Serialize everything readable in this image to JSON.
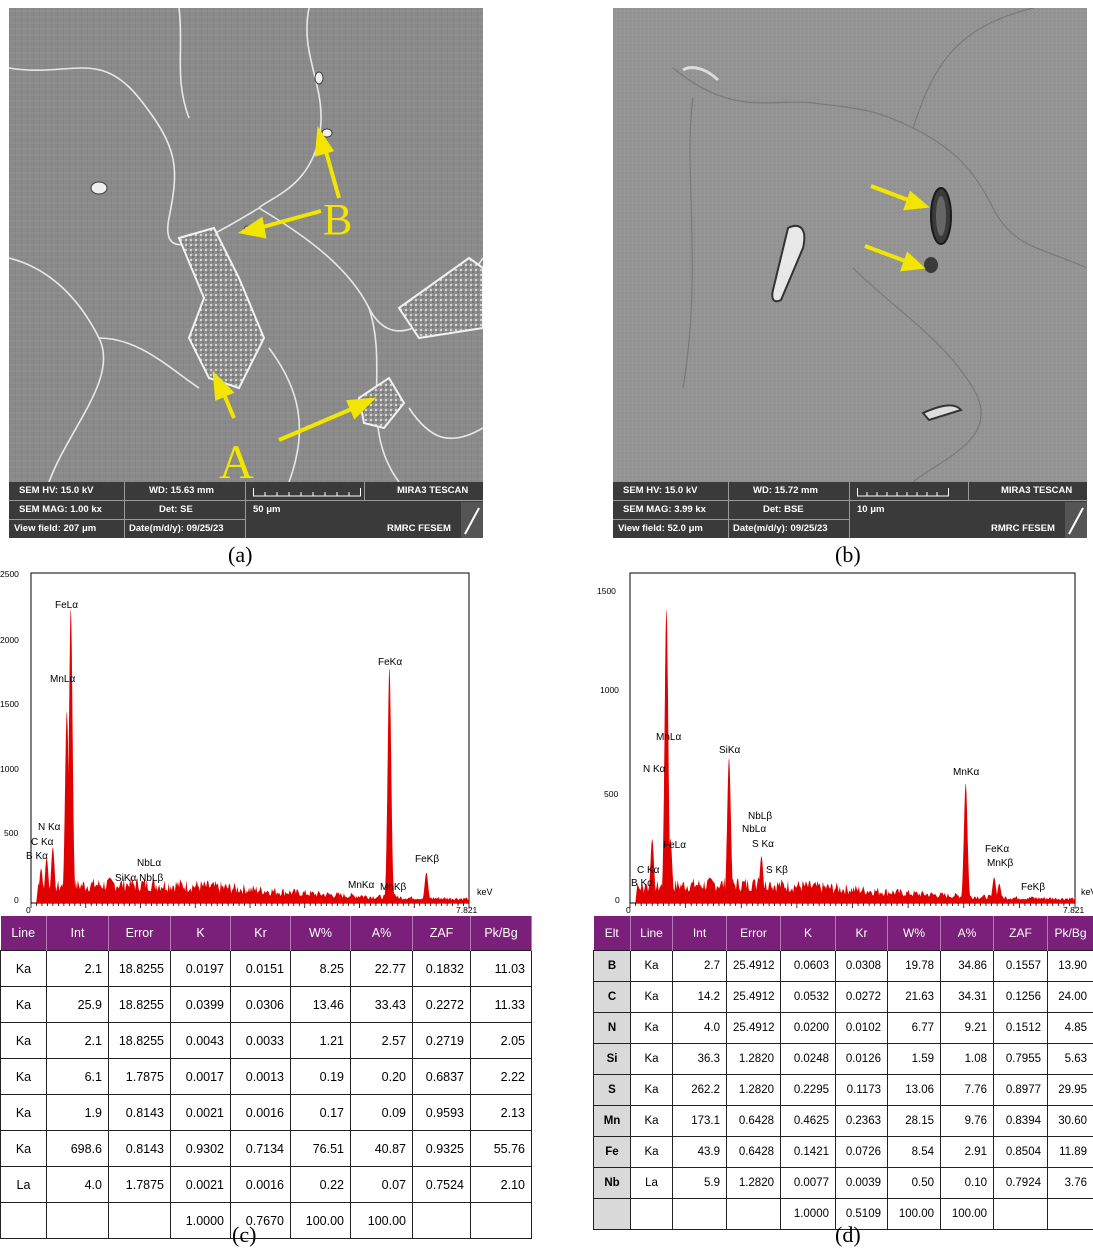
{
  "panel_a": {
    "markers": [
      "B",
      "A"
    ],
    "info": {
      "hv": "SEM HV: 15.0 kV",
      "wd": "WD: 15.63 mm",
      "brand": "MIRA3 TESCAN",
      "mag": "SEM MAG: 1.00 kx",
      "det": "Det: SE",
      "scale": "50 μm",
      "field": "View field: 207 μm",
      "date": "Date(m/d/y): 09/25/23",
      "lab": "RMRC  FESEM"
    },
    "caption": "(a)"
  },
  "panel_b": {
    "info": {
      "hv": "SEM HV: 15.0 kV",
      "wd": "WD: 15.72 mm",
      "brand": "MIRA3 TESCAN",
      "mag": "SEM MAG: 3.99 kx",
      "det": "Det: BSE",
      "scale": "10 μm",
      "field": "View field: 52.0 μm",
      "date": "Date(m/d/y): 09/25/23",
      "lab": "RMRC  FESEM"
    },
    "caption": "(b)"
  },
  "spectrum_c_labels": {
    "x_unit": "keV",
    "x_end": "7.821",
    "x_start": "0",
    "y_ticks": [
      "2500",
      "2000",
      "1500",
      "1000",
      "500",
      "0"
    ],
    "peaks": [
      "FeLα",
      "MnLα",
      "N Kα",
      "C Kα",
      "B Kα",
      "NbLα",
      "SiKα NbLβ",
      "FeKα",
      "FeKβ",
      "MnKα",
      "MnKβ"
    ]
  },
  "spectrum_d_labels": {
    "x_unit": "keV",
    "x_end": "7.821",
    "x_start": "0",
    "y_ticks": [
      "1500",
      "1000",
      "500",
      "0"
    ],
    "peaks": [
      "MnLα",
      "N Kα",
      "SiKα",
      "FeLα",
      "C Kα",
      "B Kα",
      "NbLβ",
      "NbLα",
      "S Kα",
      "S Kβ",
      "MnKα",
      "FeKα",
      "MnKβ",
      "FeKβ"
    ]
  },
  "chart_data": [
    {
      "type": "line",
      "x_unit": "keV",
      "xlim": [
        0,
        7.821
      ],
      "ylim": [
        0,
        2500
      ],
      "peaks": [
        {
          "label": "B Kα",
          "x": 0.18,
          "y": 260
        },
        {
          "label": "C Kα",
          "x": 0.28,
          "y": 340
        },
        {
          "label": "N Kα",
          "x": 0.39,
          "y": 420
        },
        {
          "label": "MnLα",
          "x": 0.64,
          "y": 1450
        },
        {
          "label": "FeLα",
          "x": 0.71,
          "y": 2230
        },
        {
          "label": "SiKα NbLβ",
          "x": 1.74,
          "y": 130
        },
        {
          "label": "NbLα",
          "x": 2.17,
          "y": 120
        },
        {
          "label": "MnKα",
          "x": 5.9,
          "y": 60
        },
        {
          "label": "FeKα",
          "x": 6.4,
          "y": 1780
        },
        {
          "label": "MnKβ",
          "x": 6.49,
          "y": 70
        },
        {
          "label": "FeKβ",
          "x": 7.06,
          "y": 230
        }
      ]
    },
    {
      "type": "line",
      "x_unit": "keV",
      "xlim": [
        0,
        7.821
      ],
      "ylim": [
        0,
        1550
      ],
      "peaks": [
        {
          "label": "B Kα",
          "x": 0.18,
          "y": 60
        },
        {
          "label": "C Kα",
          "x": 0.28,
          "y": 90
        },
        {
          "label": "N Kα",
          "x": 0.39,
          "y": 300
        },
        {
          "label": "MnLα",
          "x": 0.64,
          "y": 1380
        },
        {
          "label": "FeLα",
          "x": 0.71,
          "y": 300
        },
        {
          "label": "SiKα",
          "x": 1.74,
          "y": 680
        },
        {
          "label": "NbLβ",
          "x": 2.26,
          "y": 120
        },
        {
          "label": "NbLα",
          "x": 2.17,
          "y": 110
        },
        {
          "label": "S Kα",
          "x": 2.31,
          "y": 220
        },
        {
          "label": "S Kβ",
          "x": 2.46,
          "y": 100
        },
        {
          "label": "MnKα",
          "x": 5.9,
          "y": 560
        },
        {
          "label": "FeKα",
          "x": 6.4,
          "y": 120
        },
        {
          "label": "MnKβ",
          "x": 6.49,
          "y": 90
        },
        {
          "label": "FeKβ",
          "x": 7.06,
          "y": 30
        }
      ]
    },
    {
      "type": "table",
      "columns": [
        "Line",
        "Int",
        "Error",
        "K",
        "Kr",
        "W%",
        "A%",
        "ZAF",
        "Pk/Bg"
      ],
      "rows": [
        [
          "Ka",
          "2.1",
          "18.8255",
          "0.0197",
          "0.0151",
          "8.25",
          "22.77",
          "0.1832",
          "11.03"
        ],
        [
          "Ka",
          "25.9",
          "18.8255",
          "0.0399",
          "0.0306",
          "13.46",
          "33.43",
          "0.2272",
          "11.33"
        ],
        [
          "Ka",
          "2.1",
          "18.8255",
          "0.0043",
          "0.0033",
          "1.21",
          "2.57",
          "0.2719",
          "2.05"
        ],
        [
          "Ka",
          "6.1",
          "1.7875",
          "0.0017",
          "0.0013",
          "0.19",
          "0.20",
          "0.6837",
          "2.22"
        ],
        [
          "Ka",
          "1.9",
          "0.8143",
          "0.0021",
          "0.0016",
          "0.17",
          "0.09",
          "0.9593",
          "2.13"
        ],
        [
          "Ka",
          "698.6",
          "0.8143",
          "0.9302",
          "0.7134",
          "76.51",
          "40.87",
          "0.9325",
          "55.76"
        ],
        [
          "La",
          "4.0",
          "1.7875",
          "0.0021",
          "0.0016",
          "0.22",
          "0.07",
          "0.7524",
          "2.10"
        ],
        [
          "",
          "",
          "",
          "1.0000",
          "0.7670",
          "100.00",
          "100.00",
          "",
          ""
        ]
      ]
    },
    {
      "type": "table",
      "columns": [
        "Elt",
        "Line",
        "Int",
        "Error",
        "K",
        "Kr",
        "W%",
        "A%",
        "ZAF",
        "Pk/Bg"
      ],
      "rows": [
        [
          "B",
          "Ka",
          "2.7",
          "25.4912",
          "0.0603",
          "0.0308",
          "19.78",
          "34.86",
          "0.1557",
          "13.90"
        ],
        [
          "C",
          "Ka",
          "14.2",
          "25.4912",
          "0.0532",
          "0.0272",
          "21.63",
          "34.31",
          "0.1256",
          "24.00"
        ],
        [
          "N",
          "Ka",
          "4.0",
          "25.4912",
          "0.0200",
          "0.0102",
          "6.77",
          "9.21",
          "0.1512",
          "4.85"
        ],
        [
          "Si",
          "Ka",
          "36.3",
          "1.2820",
          "0.0248",
          "0.0126",
          "1.59",
          "1.08",
          "0.7955",
          "5.63"
        ],
        [
          "S",
          "Ka",
          "262.2",
          "1.2820",
          "0.2295",
          "0.1173",
          "13.06",
          "7.76",
          "0.8977",
          "29.95"
        ],
        [
          "Mn",
          "Ka",
          "173.1",
          "0.6428",
          "0.4625",
          "0.2363",
          "28.15",
          "9.76",
          "0.8394",
          "30.60"
        ],
        [
          "Fe",
          "Ka",
          "43.9",
          "0.6428",
          "0.1421",
          "0.0726",
          "8.54",
          "2.91",
          "0.8504",
          "11.89"
        ],
        [
          "Nb",
          "La",
          "5.9",
          "1.2820",
          "0.0077",
          "0.0039",
          "0.50",
          "0.10",
          "0.7924",
          "3.76"
        ],
        [
          "",
          "",
          "",
          "",
          "1.0000",
          "0.5109",
          "100.00",
          "100.00",
          "",
          ""
        ]
      ]
    }
  ],
  "captions": {
    "c": "(c)",
    "d": "(d)"
  },
  "colors": {
    "spectrum": "#e00000",
    "arrow": "#f2e600",
    "table_header": "#7a1f7a"
  }
}
